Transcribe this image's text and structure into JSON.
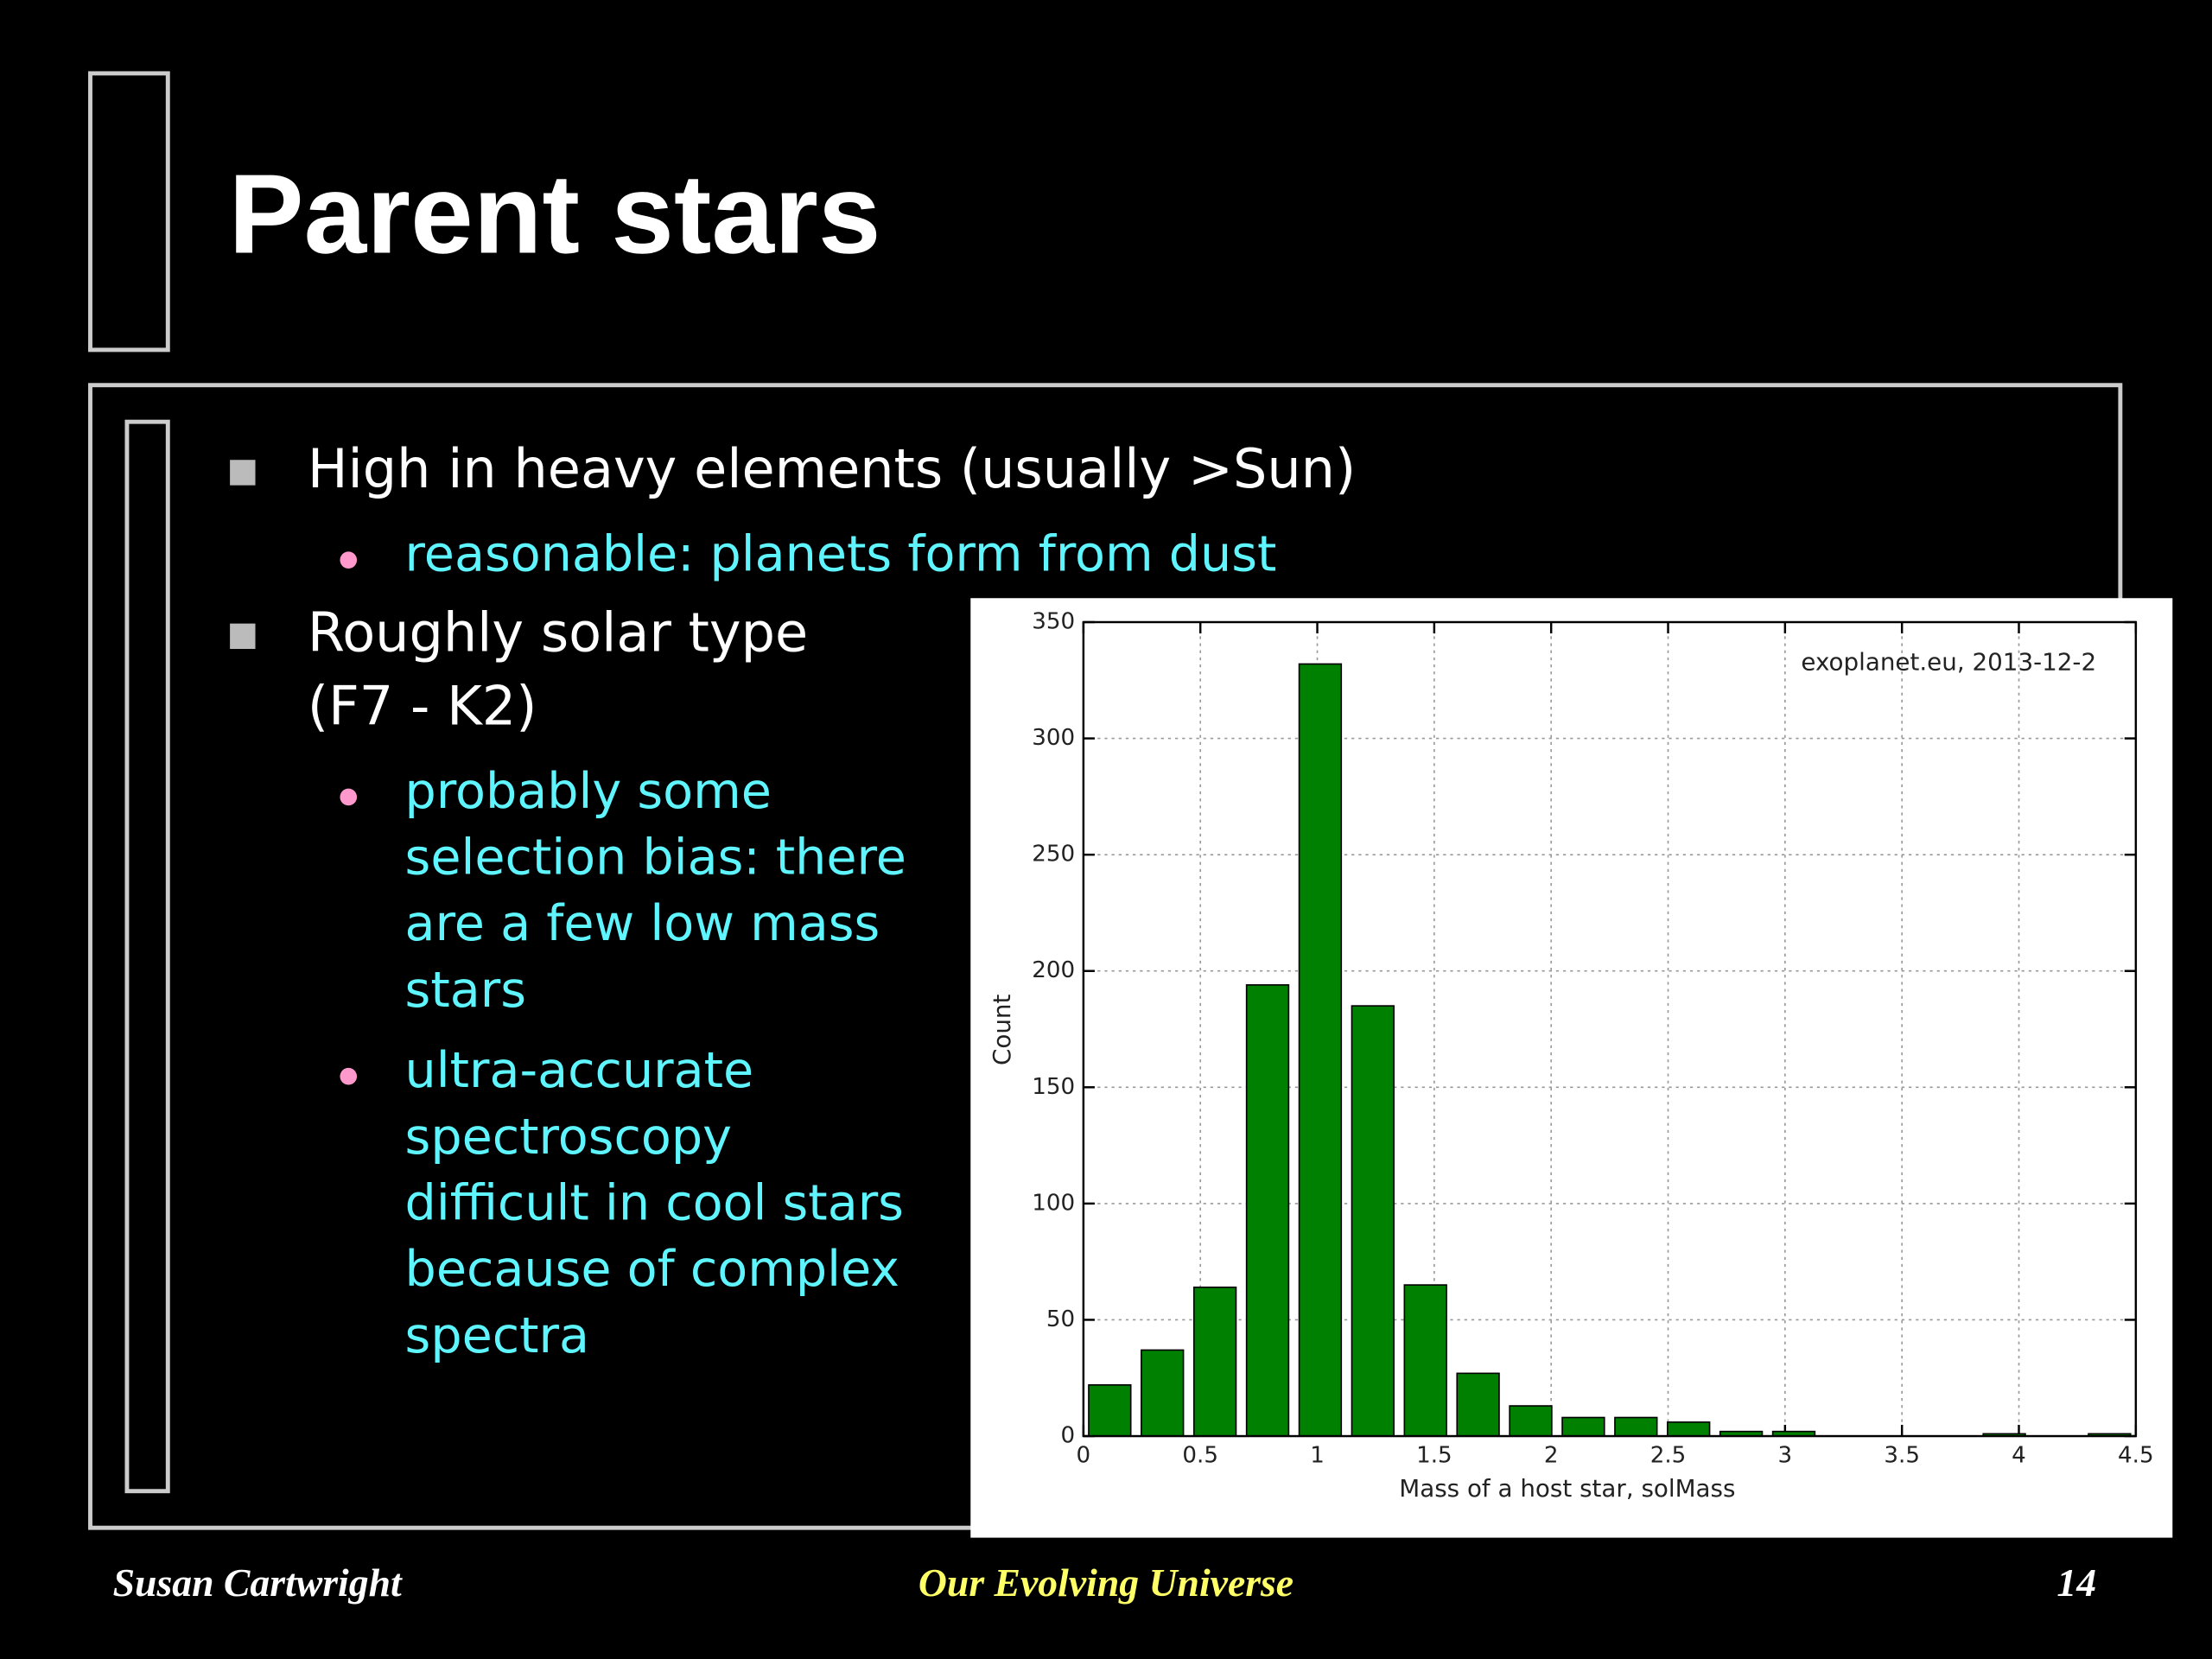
{
  "slide": {
    "title": "Parent stars",
    "bullets": [
      {
        "lines": [
          "High in heavy elements (usually >Sun)"
        ],
        "sub": [
          {
            "lines": [
              "reasonable: planets form from dust"
            ]
          }
        ]
      },
      {
        "lines": [
          "Roughly solar type",
          "(F7 - K2)"
        ],
        "sub": [
          {
            "lines": [
              "probably some",
              "selection bias: there",
              "are a few low mass",
              "stars"
            ]
          },
          {
            "lines": [
              "ultra-accurate",
              "spectroscopy",
              "difficult in cool stars",
              "because of complex",
              "spectra"
            ]
          }
        ]
      }
    ],
    "footer": {
      "author": "Susan Cartwright",
      "course": "Our Evolving Universe",
      "page": "14"
    }
  },
  "chart_data": {
    "type": "histogram",
    "annotation": "exoplanet.eu, 2013-12-2",
    "x_label": "Mass of a host star, solMass",
    "y_label": "Count",
    "bins": [
      0,
      0.225,
      0.45,
      0.675,
      0.9,
      1.125,
      1.35,
      1.575,
      1.8,
      2.025,
      2.25,
      2.475,
      2.7,
      2.925,
      3.15,
      3.375,
      3.6,
      3.825,
      4.05,
      4.275,
      4.5
    ],
    "values": [
      22,
      37,
      64,
      194,
      332,
      185,
      65,
      27,
      13,
      8,
      8,
      6,
      2,
      2,
      0,
      0,
      0,
      1,
      0,
      1
    ],
    "color": "#008000",
    "xlim": [
      0,
      4.5
    ],
    "xticks": [
      0,
      0.5,
      1,
      1.5,
      2,
      2.5,
      3,
      3.5,
      4,
      4.5
    ],
    "ylim": [
      0,
      350
    ],
    "yticks": [
      0,
      50,
      100,
      150,
      200,
      250,
      300,
      350
    ],
    "grid": true
  }
}
